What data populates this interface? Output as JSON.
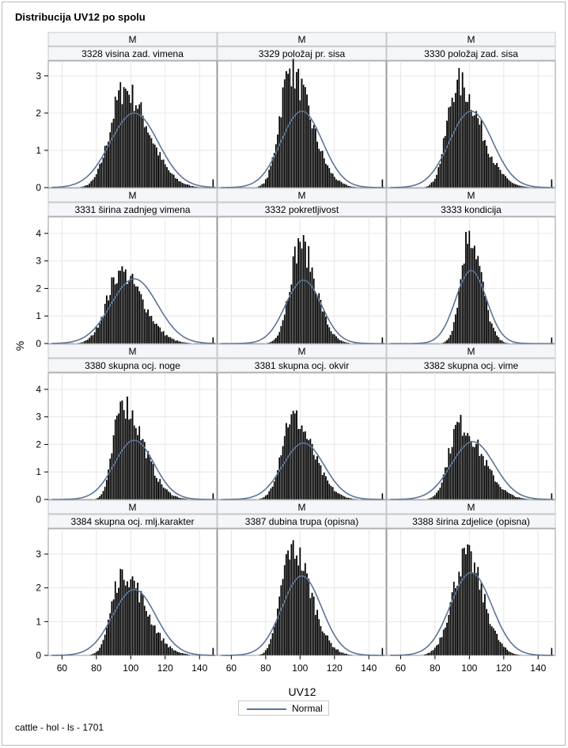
{
  "title": "Distribucija UV12 po spolu",
  "footnote": "cattle - hol - ls - 1701",
  "colors": {
    "bar": "#000000",
    "bar_outline": "#ffffff",
    "curve": "#5b7596",
    "header_bg": "#f4f6fa",
    "grid": "#e6e6e6"
  },
  "chart_data": {
    "type": "bar",
    "x_label": "UV12",
    "y_label": "%",
    "x_range": [
      52,
      150
    ],
    "x_ticks": [
      60,
      80,
      100,
      120,
      140
    ],
    "legend": {
      "position": "bottom-center",
      "entries": [
        "Normal"
      ]
    },
    "grid": true,
    "rows": [
      {
        "y_range": [
          0,
          3.4
        ],
        "y_ticks": [
          0,
          1,
          2,
          3
        ]
      },
      {
        "y_range": [
          0,
          4.6
        ],
        "y_ticks": [
          0,
          1,
          2,
          3,
          4
        ]
      },
      {
        "y_range": [
          0,
          4.6
        ],
        "y_ticks": [
          0,
          1,
          2,
          3,
          4
        ]
      },
      {
        "y_range": [
          0,
          3.75
        ],
        "y_ticks": [
          0,
          1,
          2,
          3
        ]
      }
    ],
    "panels": [
      {
        "sex": "M",
        "trait": "3328 visina zad. vimena",
        "mode": 96,
        "peak": 2.7,
        "sigma_left": 8,
        "sigma_right": 14,
        "normal_mean": 102,
        "normal_peak": 2.0
      },
      {
        "sex": "M",
        "trait": "3329 položaj pr. sisa",
        "mode": 94,
        "peak": 3.2,
        "sigma_left": 6,
        "sigma_right": 12,
        "normal_mean": 101,
        "normal_peak": 2.05
      },
      {
        "sex": "M",
        "trait": "3330 položaj zad. sisa",
        "mode": 93,
        "peak": 2.9,
        "sigma_left": 6,
        "sigma_right": 13,
        "normal_mean": 101,
        "normal_peak": 2.05
      },
      {
        "sex": "M",
        "trait": "3331 širina zadnjeg vimena",
        "mode": 94,
        "peak": 2.65,
        "sigma_left": 8,
        "sigma_right": 13,
        "normal_mean": 102,
        "normal_peak": 2.35
      },
      {
        "sex": "M",
        "trait": "3332 pokretljivost",
        "mode": 100,
        "peak": 3.7,
        "sigma_left": 6,
        "sigma_right": 9,
        "normal_mean": 102,
        "normal_peak": 2.3
      },
      {
        "sex": "M",
        "trait": "3333 kondicija",
        "mode": 100,
        "peak": 4.1,
        "sigma_left": 5,
        "sigma_right": 7,
        "normal_mean": 101,
        "normal_peak": 2.65
      },
      {
        "sex": "M",
        "trait": "3380 skupna ocj. noge",
        "mode": 95,
        "peak": 3.6,
        "sigma_left": 5,
        "sigma_right": 12,
        "normal_mean": 102,
        "normal_peak": 2.15
      },
      {
        "sex": "M",
        "trait": "3381 skupna ocj. okvir",
        "mode": 95,
        "peak": 3.1,
        "sigma_left": 6,
        "sigma_right": 12,
        "normal_mean": 102,
        "normal_peak": 2.05
      },
      {
        "sex": "M",
        "trait": "3382 skupna ocj. vime",
        "mode": 94,
        "peak": 2.8,
        "sigma_left": 6,
        "sigma_right": 13,
        "normal_mean": 102,
        "normal_peak": 2.1
      },
      {
        "sex": "M",
        "trait": "3384 skupna ocj. mlj.karakter",
        "mode": 95,
        "peak": 2.55,
        "sigma_left": 6,
        "sigma_right": 13,
        "normal_mean": 102,
        "normal_peak": 1.95
      },
      {
        "sex": "M",
        "trait": "3387 dubina trupa (opisna)",
        "mode": 95,
        "peak": 3.3,
        "sigma_left": 6,
        "sigma_right": 11,
        "normal_mean": 101,
        "normal_peak": 2.35
      },
      {
        "sex": "M",
        "trait": "3388 širina zdjelice (opisna)",
        "mode": 98,
        "peak": 3.0,
        "sigma_left": 8,
        "sigma_right": 10,
        "normal_mean": 101,
        "normal_peak": 2.45
      }
    ]
  }
}
